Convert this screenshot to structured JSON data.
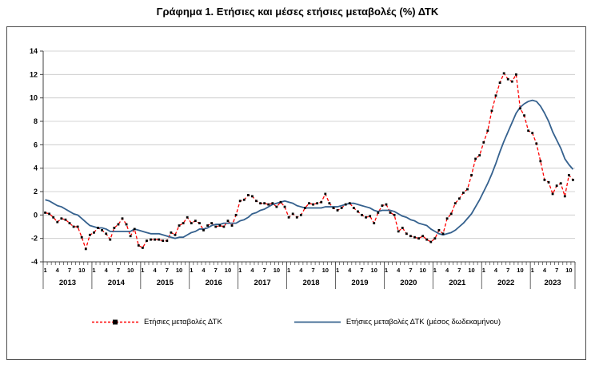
{
  "title": "Γράφημα 1. Ετήσιες και μέσες ετήσιες μεταβολές (%) ΔΤΚ",
  "colors": {
    "annual": "#FF0000",
    "marker": "#000000",
    "average": "#35618E",
    "grid": "#C6C6C6",
    "axis": "#404040"
  },
  "chart_data": {
    "type": "line",
    "title": "Γράφημα 1. Ετήσιες και μέσες ετήσιες μεταβολές (%) ΔΤΚ",
    "grid": true,
    "legend_position": "bottom",
    "ylim": [
      -4,
      14
    ],
    "ytick_step": 2,
    "yticks": [
      -4,
      -2,
      0,
      2,
      4,
      6,
      8,
      10,
      12,
      14
    ],
    "start_month": 1,
    "x_years": [
      2013,
      2014,
      2015,
      2016,
      2017,
      2018,
      2019,
      2020,
      2021,
      2022,
      2023
    ],
    "x_month_labels": [
      1,
      4,
      7,
      10
    ],
    "series": [
      {
        "name": "Ετήσιες μεταβολές ΔΤΚ",
        "style": "dashed-red-black-square-markers",
        "values": [
          0.2,
          0.1,
          -0.2,
          -0.6,
          -0.3,
          -0.4,
          -0.7,
          -1.0,
          -1.0,
          -1.9,
          -2.9,
          -1.7,
          -1.5,
          -1.1,
          -1.3,
          -1.6,
          -2.1,
          -1.1,
          -0.8,
          -0.3,
          -0.8,
          -1.8,
          -1.2,
          -2.6,
          -2.8,
          -2.2,
          -2.1,
          -2.1,
          -2.1,
          -2.2,
          -2.2,
          -1.5,
          -1.7,
          -0.9,
          -0.7,
          -0.2,
          -0.7,
          -0.5,
          -0.7,
          -1.3,
          -0.9,
          -0.7,
          -1.0,
          -0.9,
          -1.0,
          -0.5,
          -0.9,
          0.0,
          1.2,
          1.3,
          1.7,
          1.6,
          1.2,
          1.0,
          1.0,
          0.9,
          1.0,
          0.7,
          1.1,
          0.7,
          -0.2,
          0.1,
          -0.2,
          0.0,
          0.6,
          1.0,
          0.9,
          1.0,
          1.1,
          1.8,
          1.0,
          0.6,
          0.4,
          0.6,
          0.9,
          1.0,
          0.6,
          0.3,
          0.0,
          -0.2,
          -0.1,
          -0.7,
          0.2,
          0.8,
          0.9,
          0.2,
          0.0,
          -1.4,
          -1.1,
          -1.6,
          -1.8,
          -1.9,
          -2.0,
          -1.8,
          -2.1,
          -2.3,
          -2.0,
          -1.3,
          -1.6,
          -0.3,
          0.1,
          1.0,
          1.4,
          1.9,
          2.2,
          3.4,
          4.8,
          5.1,
          6.2,
          7.2,
          8.9,
          10.2,
          11.3,
          12.1,
          11.6,
          11.4,
          12.0,
          9.1,
          8.5,
          7.2,
          7.0,
          6.1,
          4.6,
          3.0,
          2.8,
          1.8,
          2.5,
          2.7,
          1.6,
          3.4,
          3.0
        ]
      },
      {
        "name": "Ετήσιες μεταβολές ΔΤΚ (μέσος δωδεκαμήνου)",
        "style": "solid-blue",
        "values": [
          1.3,
          1.2,
          1.0,
          0.8,
          0.7,
          0.5,
          0.3,
          0.1,
          0.0,
          -0.3,
          -0.6,
          -0.9,
          -1.0,
          -1.1,
          -1.1,
          -1.2,
          -1.4,
          -1.4,
          -1.4,
          -1.4,
          -1.4,
          -1.4,
          -1.2,
          -1.3,
          -1.4,
          -1.5,
          -1.6,
          -1.6,
          -1.6,
          -1.7,
          -1.8,
          -1.9,
          -2.0,
          -1.9,
          -1.9,
          -1.7,
          -1.5,
          -1.4,
          -1.2,
          -1.2,
          -1.1,
          -0.9,
          -0.8,
          -0.8,
          -0.7,
          -0.7,
          -0.7,
          -0.7,
          -0.5,
          -0.4,
          -0.2,
          0.1,
          0.2,
          0.4,
          0.5,
          0.7,
          0.9,
          1.0,
          1.1,
          1.2,
          1.1,
          1.0,
          0.8,
          0.7,
          0.6,
          0.6,
          0.6,
          0.6,
          0.6,
          0.7,
          0.7,
          0.7,
          0.7,
          0.8,
          0.9,
          1.0,
          1.0,
          0.9,
          0.8,
          0.7,
          0.6,
          0.4,
          0.3,
          0.4,
          0.4,
          0.4,
          0.3,
          0.1,
          -0.1,
          -0.2,
          -0.4,
          -0.5,
          -0.7,
          -0.8,
          -0.9,
          -1.2,
          -1.4,
          -1.6,
          -1.7,
          -1.6,
          -1.5,
          -1.3,
          -1.0,
          -0.7,
          -0.3,
          0.1,
          0.7,
          1.3,
          2.0,
          2.7,
          3.5,
          4.4,
          5.4,
          6.3,
          7.1,
          7.9,
          8.7,
          9.2,
          9.5,
          9.7,
          9.8,
          9.7,
          9.3,
          8.7,
          8.0,
          7.1,
          6.4,
          5.7,
          4.8,
          4.3,
          3.9
        ]
      }
    ]
  }
}
